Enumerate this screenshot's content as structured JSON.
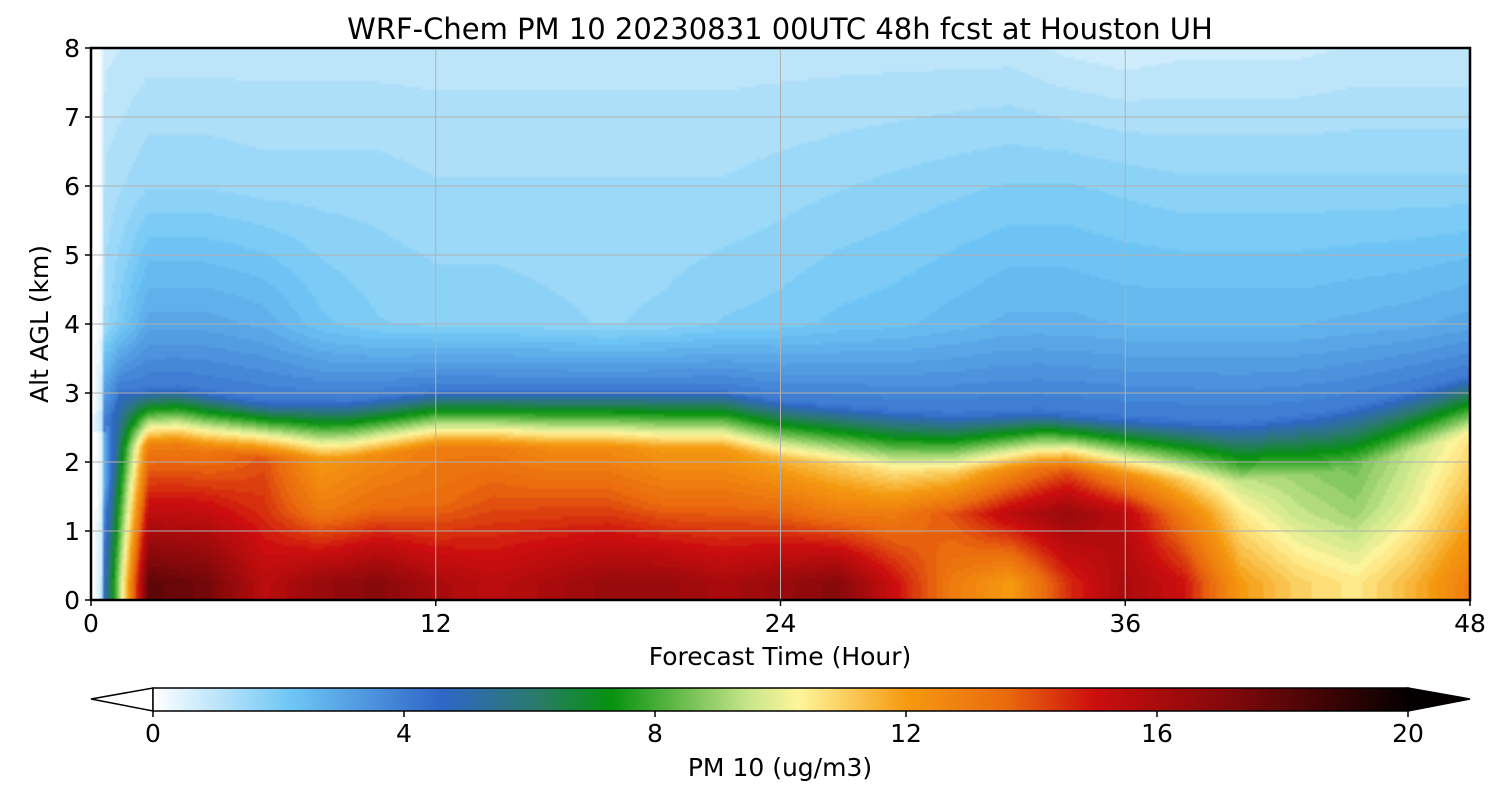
{
  "chart_data": {
    "type": "heatmap",
    "title": "WRF-Chem PM 10  20230831 00UTC 48h fcst at Houston UH",
    "xlabel": "Forecast Time (Hour)",
    "ylabel": "Alt AGL (km)",
    "xlim": [
      0,
      48
    ],
    "ylim": [
      0,
      8
    ],
    "x_ticks": [
      "0",
      "12",
      "24",
      "36",
      "48"
    ],
    "y_ticks": [
      "0",
      "1",
      "2",
      "3",
      "4",
      "5",
      "6",
      "7",
      "8"
    ],
    "grid": true,
    "colorbar": {
      "label": "PM 10  (ug/m3)",
      "range": [
        0,
        20
      ],
      "extend": "both",
      "ticks": [
        "0",
        "4",
        "8",
        "12",
        "16",
        "20"
      ],
      "stops": [
        {
          "v": 0,
          "c": "#ffffff"
        },
        {
          "v": 2.2,
          "c": "#6ec6f5"
        },
        {
          "v": 4.6,
          "c": "#2f66c8"
        },
        {
          "v": 6.1,
          "c": "#2a7a6a"
        },
        {
          "v": 7.3,
          "c": "#06910e"
        },
        {
          "v": 9.5,
          "c": "#c8e68a"
        },
        {
          "v": 10.3,
          "c": "#fff59b"
        },
        {
          "v": 12,
          "c": "#f59a10"
        },
        {
          "v": 13.6,
          "c": "#ea6a0e"
        },
        {
          "v": 15,
          "c": "#cc0e0e"
        },
        {
          "v": 17.2,
          "c": "#80080a"
        },
        {
          "v": 20,
          "c": "#050000"
        }
      ]
    },
    "boundary_layer_top_km": {
      "x": [
        0.5,
        1,
        3,
        6,
        9,
        12,
        18,
        22,
        24,
        28,
        30,
        33,
        36,
        40,
        43,
        45,
        48
      ],
      "y": [
        2.0,
        2.55,
        2.6,
        2.4,
        2.4,
        2.55,
        2.55,
        2.55,
        2.4,
        2.25,
        2.2,
        2.25,
        2.15,
        2.05,
        2.2,
        2.4,
        2.75
      ]
    },
    "series": [
      {
        "altitude_km": 0.25,
        "values": [
          0,
          5,
          18,
          17.5,
          15.5,
          16.5,
          17,
          16,
          15.5,
          16,
          16.5,
          16.5,
          16,
          16.5,
          17,
          15,
          13,
          12,
          14.5,
          16,
          15,
          12,
          11,
          10.5,
          11.5,
          13
        ]
      },
      {
        "altitude_km": 1.25,
        "values": [
          0,
          4,
          15,
          15,
          14.5,
          13,
          13.5,
          13.5,
          14,
          14,
          14,
          13.5,
          13.5,
          13.5,
          13,
          13,
          14,
          15.5,
          16.5,
          15.5,
          13,
          10.5,
          9.5,
          9,
          10,
          11.5
        ]
      },
      {
        "altitude_km": 1.9,
        "values": [
          0,
          3,
          13,
          13,
          14,
          12,
          12.5,
          13,
          13,
          12.5,
          12.5,
          12,
          12,
          11.5,
          11,
          10.5,
          11,
          12.5,
          14,
          12.5,
          11,
          9.5,
          9,
          8.5,
          9.5,
          10.5
        ]
      },
      {
        "altitude_km": 3.5,
        "values": [
          0,
          1.5,
          3,
          3,
          2.8,
          2.2,
          1.9,
          1.8,
          1.8,
          1.7,
          1.6,
          1.7,
          1.9,
          2.0,
          2.2,
          2.3,
          2.5,
          2.7,
          2.7,
          2.6,
          2.6,
          2.6,
          2.6,
          2.7,
          2.8,
          3.0
        ]
      },
      {
        "altitude_km": 6.0,
        "values": [
          0,
          1.2,
          1.6,
          1.6,
          1.5,
          1.5,
          1.5,
          1.4,
          1.4,
          1.4,
          1.4,
          1.4,
          1.4,
          1.5,
          1.6,
          1.7,
          1.8,
          1.9,
          1.9,
          1.8,
          1.7,
          1.7,
          1.7,
          1.7,
          1.7,
          1.7
        ]
      },
      {
        "altitude_km": 7.8,
        "values": [
          0,
          0.8,
          1.0,
          1.0,
          1.0,
          1.0,
          1.0,
          1.0,
          1.0,
          1.0,
          1.0,
          1.0,
          1.0,
          1.0,
          1.0,
          1.0,
          1.0,
          1.0,
          0.8,
          0.7,
          0.8,
          0.8,
          0.8,
          0.9,
          0.9,
          0.9
        ]
      }
    ],
    "series_x_hours": [
      0,
      0.5,
      2,
      4,
      6,
      8,
      10,
      12,
      14,
      16,
      18,
      20,
      22,
      24,
      26,
      28,
      30,
      32,
      34,
      36,
      38,
      40,
      42,
      44,
      46,
      48
    ]
  }
}
